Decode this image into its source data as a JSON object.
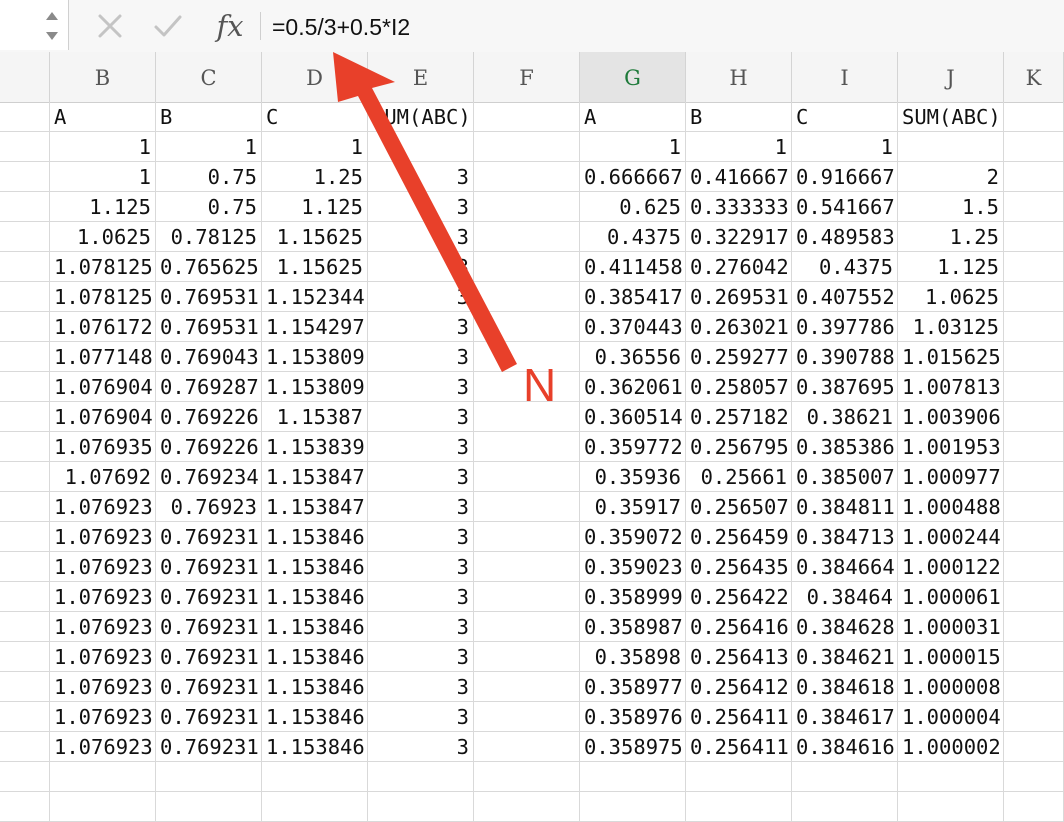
{
  "formula_bar": {
    "cancel_icon": "x-icon",
    "confirm_icon": "check-icon",
    "fx_label": "fx",
    "formula": "=0.5/3+0.5*I2"
  },
  "columns": [
    {
      "label": "",
      "selected": false
    },
    {
      "label": "B",
      "selected": false
    },
    {
      "label": "C",
      "selected": false
    },
    {
      "label": "D",
      "selected": false
    },
    {
      "label": "E",
      "selected": false
    },
    {
      "label": "F",
      "selected": false
    },
    {
      "label": "G",
      "selected": true
    },
    {
      "label": "H",
      "selected": false
    },
    {
      "label": "I",
      "selected": false
    },
    {
      "label": "J",
      "selected": false
    },
    {
      "label": "K",
      "selected": false
    }
  ],
  "rows": [
    [
      "",
      "A",
      "B",
      "C",
      "SUM(ABC)",
      "",
      "A",
      "B",
      "C",
      "SUM(ABC)",
      ""
    ],
    [
      "",
      "1",
      "1",
      "1",
      "",
      "",
      "1",
      "1",
      "1",
      "",
      ""
    ],
    [
      "",
      "1",
      "0.75",
      "1.25",
      "3",
      "",
      "0.666667",
      "0.416667",
      "0.916667",
      "2",
      ""
    ],
    [
      "",
      "1.125",
      "0.75",
      "1.125",
      "3",
      "",
      "0.625",
      "0.333333",
      "0.541667",
      "1.5",
      ""
    ],
    [
      "",
      "1.0625",
      "0.78125",
      "1.15625",
      "3",
      "",
      "0.4375",
      "0.322917",
      "0.489583",
      "1.25",
      ""
    ],
    [
      "",
      "1.078125",
      "0.765625",
      "1.15625",
      "3",
      "",
      "0.411458",
      "0.276042",
      "0.4375",
      "1.125",
      ""
    ],
    [
      "",
      "1.078125",
      "0.769531",
      "1.152344",
      "3",
      "",
      "0.385417",
      "0.269531",
      "0.407552",
      "1.0625",
      ""
    ],
    [
      "",
      "1.076172",
      "0.769531",
      "1.154297",
      "3",
      "",
      "0.370443",
      "0.263021",
      "0.397786",
      "1.03125",
      ""
    ],
    [
      "",
      "1.077148",
      "0.769043",
      "1.153809",
      "3",
      "",
      "0.36556",
      "0.259277",
      "0.390788",
      "1.015625",
      ""
    ],
    [
      "",
      "1.076904",
      "0.769287",
      "1.153809",
      "3",
      "",
      "0.362061",
      "0.258057",
      "0.387695",
      "1.007813",
      ""
    ],
    [
      "",
      "1.076904",
      "0.769226",
      "1.15387",
      "3",
      "",
      "0.360514",
      "0.257182",
      "0.38621",
      "1.003906",
      ""
    ],
    [
      "",
      "1.076935",
      "0.769226",
      "1.153839",
      "3",
      "",
      "0.359772",
      "0.256795",
      "0.385386",
      "1.001953",
      ""
    ],
    [
      "",
      "1.07692",
      "0.769234",
      "1.153847",
      "3",
      "",
      "0.35936",
      "0.25661",
      "0.385007",
      "1.000977",
      ""
    ],
    [
      "",
      "1.076923",
      "0.76923",
      "1.153847",
      "3",
      "",
      "0.35917",
      "0.256507",
      "0.384811",
      "1.000488",
      ""
    ],
    [
      "",
      "1.076923",
      "0.769231",
      "1.153846",
      "3",
      "",
      "0.359072",
      "0.256459",
      "0.384713",
      "1.000244",
      ""
    ],
    [
      "",
      "1.076923",
      "0.769231",
      "1.153846",
      "3",
      "",
      "0.359023",
      "0.256435",
      "0.384664",
      "1.000122",
      ""
    ],
    [
      "",
      "1.076923",
      "0.769231",
      "1.153846",
      "3",
      "",
      "0.358999",
      "0.256422",
      "0.38464",
      "1.000061",
      ""
    ],
    [
      "",
      "1.076923",
      "0.769231",
      "1.153846",
      "3",
      "",
      "0.358987",
      "0.256416",
      "0.384628",
      "1.000031",
      ""
    ],
    [
      "",
      "1.076923",
      "0.769231",
      "1.153846",
      "3",
      "",
      "0.35898",
      "0.256413",
      "0.384621",
      "1.000015",
      ""
    ],
    [
      "",
      "1.076923",
      "0.769231",
      "1.153846",
      "3",
      "",
      "0.358977",
      "0.256412",
      "0.384618",
      "1.000008",
      ""
    ],
    [
      "",
      "1.076923",
      "0.769231",
      "1.153846",
      "3",
      "",
      "0.358976",
      "0.256411",
      "0.384617",
      "1.000004",
      ""
    ],
    [
      "",
      "1.076923",
      "0.769231",
      "1.153846",
      "3",
      "",
      "0.358975",
      "0.256411",
      "0.384616",
      "1.000002",
      ""
    ],
    [
      "",
      "",
      "",
      "",
      "",
      "",
      "",
      "",
      "",
      "",
      ""
    ],
    [
      "",
      "",
      "",
      "",
      "",
      "",
      "",
      "",
      "",
      "",
      ""
    ]
  ],
  "annotation": {
    "label": "N",
    "color": "#e8402a"
  }
}
